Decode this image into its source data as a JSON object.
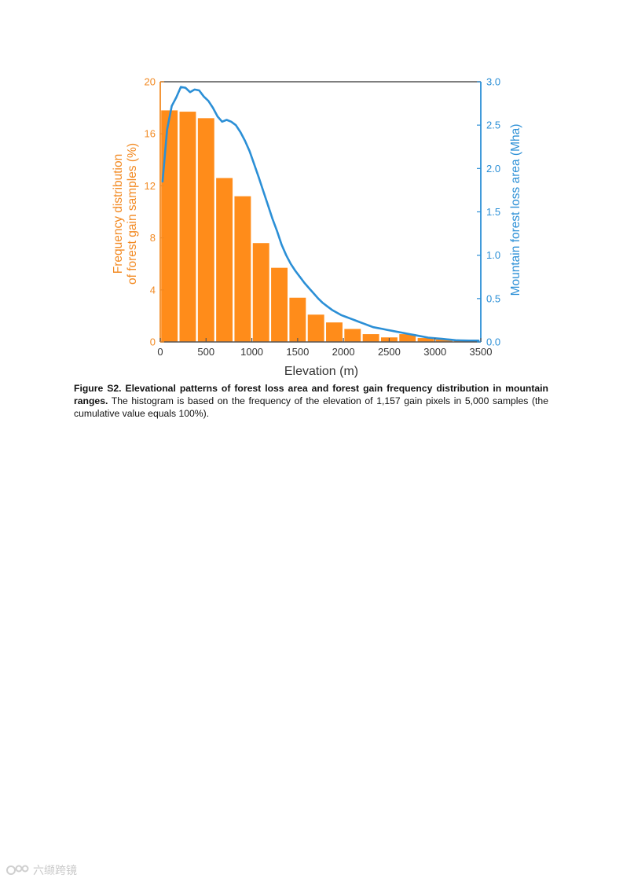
{
  "figure": {
    "caption_title": "Figure S2. Elevational patterns of forest loss area and forest gain frequency distribution in mountain ranges.",
    "caption_body": " The histogram is based on the frequency of the elevation of 1,157 gain pixels in 5,000 samples (the cumulative value equals 100%)."
  },
  "chart_data": {
    "type": "bar",
    "xlabel": "Elevation (m)",
    "ylabel_left_line1": "Frequency distribution",
    "ylabel_left_line2": "of forest gain samples (%)",
    "ylabel_right": "Mountain forest loss area (Mha)",
    "xlim": [
      0,
      3500
    ],
    "ylim_left": [
      0,
      20
    ],
    "ylim_right": [
      0,
      3.0
    ],
    "x_ticks": [
      "0",
      "500",
      "1000",
      "1500",
      "2000",
      "2500",
      "3000",
      "3500"
    ],
    "y_left_ticks": [
      "0",
      "4",
      "8",
      "12",
      "16",
      "20"
    ],
    "y_right_ticks": [
      "0.0",
      "0.5",
      "1.0",
      "1.5",
      "2.0",
      "2.5",
      "3.0"
    ],
    "bar_width": 200,
    "series": [
      {
        "type": "bar",
        "axis": "left",
        "color": "#ff8c1a",
        "x": [
          100,
          300,
          500,
          700,
          900,
          1100,
          1300,
          1500,
          1700,
          1900,
          2100,
          2300,
          2500,
          2700,
          2900,
          3100,
          3300
        ],
        "values": [
          17.8,
          17.7,
          17.2,
          12.6,
          11.2,
          7.6,
          5.7,
          3.4,
          2.1,
          1.5,
          1.0,
          0.6,
          0.35,
          0.6,
          0.3,
          0.2,
          0.1
        ]
      },
      {
        "type": "line",
        "axis": "right",
        "color": "#2b8fd6",
        "x": [
          25,
          75,
          125,
          175,
          225,
          275,
          325,
          375,
          425,
          475,
          525,
          575,
          625,
          675,
          725,
          775,
          825,
          875,
          925,
          975,
          1025,
          1075,
          1125,
          1175,
          1225,
          1275,
          1325,
          1375,
          1425,
          1475,
          1525,
          1575,
          1625,
          1675,
          1725,
          1775,
          1825,
          1875,
          1925,
          1975,
          2025,
          2075,
          2125,
          2175,
          2225,
          2275,
          2325,
          2375,
          2425,
          2475,
          2525,
          2575,
          2625,
          2675,
          2725,
          2775,
          2825,
          2875,
          2925,
          2975,
          3025,
          3075,
          3125,
          3175,
          3225,
          3275,
          3325,
          3375,
          3425,
          3475
        ],
        "values": [
          1.85,
          2.45,
          2.72,
          2.82,
          2.94,
          2.93,
          2.88,
          2.91,
          2.9,
          2.83,
          2.78,
          2.7,
          2.6,
          2.54,
          2.56,
          2.54,
          2.5,
          2.42,
          2.32,
          2.2,
          2.05,
          1.9,
          1.74,
          1.58,
          1.42,
          1.28,
          1.12,
          1.0,
          0.9,
          0.82,
          0.75,
          0.68,
          0.62,
          0.56,
          0.5,
          0.45,
          0.41,
          0.37,
          0.34,
          0.31,
          0.29,
          0.27,
          0.25,
          0.23,
          0.21,
          0.19,
          0.17,
          0.16,
          0.15,
          0.14,
          0.13,
          0.12,
          0.11,
          0.1,
          0.09,
          0.08,
          0.07,
          0.06,
          0.05,
          0.045,
          0.04,
          0.035,
          0.03,
          0.025,
          0.02,
          0.018,
          0.016,
          0.015,
          0.015,
          0.015
        ]
      }
    ]
  },
  "watermark": {
    "text": "六缬跨镜"
  }
}
